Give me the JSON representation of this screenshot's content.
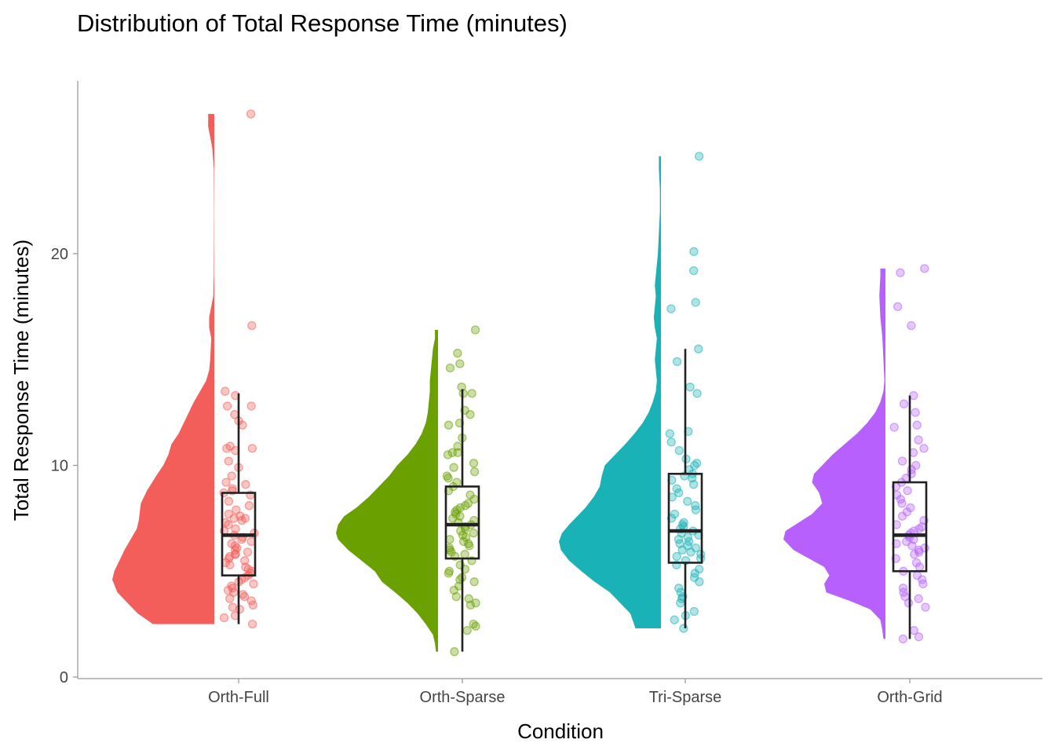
{
  "chart_data": {
    "type": "raincloud",
    "title": "Distribution of Total Response Time (minutes)",
    "xlabel": "Condition",
    "ylabel": "Total Response Time (minutes)",
    "ylim": [
      0,
      27.5
    ],
    "yticks": [
      0,
      10,
      20
    ],
    "grid": false,
    "legend": "none",
    "categories": [
      "Orth-Full",
      "Orth-Sparse",
      "Tri-Sparse",
      "Orth-Grid"
    ],
    "series": [
      {
        "category": "Orth-Full",
        "color": "#F35E5A",
        "min": 2.5,
        "q1": 4.8,
        "median": 6.7,
        "q3": 8.7,
        "max": 13.4,
        "range": [
          2.5,
          26.6
        ],
        "density": [
          [
            2.5,
            0.6
          ],
          [
            3.0,
            0.75
          ],
          [
            3.5,
            0.85
          ],
          [
            4.0,
            0.95
          ],
          [
            4.6,
            1.0
          ],
          [
            5.0,
            0.98
          ],
          [
            5.5,
            0.93
          ],
          [
            6.0,
            0.88
          ],
          [
            6.5,
            0.82
          ],
          [
            7.0,
            0.76
          ],
          [
            7.4,
            0.74
          ],
          [
            7.8,
            0.73
          ],
          [
            8.2,
            0.72
          ],
          [
            8.8,
            0.66
          ],
          [
            9.5,
            0.57
          ],
          [
            10.0,
            0.5
          ],
          [
            10.5,
            0.45
          ],
          [
            11.0,
            0.42
          ],
          [
            11.5,
            0.35
          ],
          [
            12.0,
            0.3
          ],
          [
            12.5,
            0.25
          ],
          [
            13.0,
            0.2
          ],
          [
            13.5,
            0.14
          ],
          [
            14.0,
            0.08
          ],
          [
            14.5,
            0.05
          ],
          [
            15.0,
            0.04
          ],
          [
            16.0,
            0.03
          ],
          [
            16.5,
            0.05
          ],
          [
            17.0,
            0.05
          ],
          [
            17.5,
            0.03
          ],
          [
            18.0,
            0.01
          ],
          [
            19.0,
            0.005
          ],
          [
            22.0,
            0.002
          ],
          [
            24.0,
            0.005
          ],
          [
            25.0,
            0.02
          ],
          [
            26.0,
            0.06
          ],
          [
            26.6,
            0.06
          ]
        ],
        "points": [
          26.6,
          16.6,
          13.5,
          13.3,
          12.8,
          12.8,
          12.4,
          12.1,
          11.9,
          10.9,
          10.8,
          10.8,
          10.7,
          10.2,
          9.9,
          9.5,
          9.2,
          9.1,
          8.9,
          8.8,
          8.7,
          8.6,
          8.3,
          8.1,
          7.9,
          7.7,
          7.6,
          7.5,
          7.5,
          7.4,
          7.3,
          7.2,
          7.0,
          6.9,
          6.8,
          6.7,
          6.6,
          6.5,
          6.4,
          6.3,
          6.2,
          6.1,
          6.0,
          5.9,
          5.8,
          5.8,
          5.7,
          5.6,
          5.5,
          5.4,
          5.3,
          5.2,
          5.1,
          5.0,
          4.9,
          4.8,
          4.7,
          4.6,
          4.5,
          4.4,
          4.3,
          4.2,
          4.1,
          4.0,
          3.9,
          3.8,
          3.7,
          3.6,
          3.4,
          3.3,
          3.2,
          2.9,
          2.8,
          2.5
        ]
      },
      {
        "category": "Orth-Sparse",
        "color": "#6AA100",
        "min": 1.2,
        "q1": 5.6,
        "median": 7.2,
        "q3": 9.0,
        "max": 13.6,
        "range": [
          1.2,
          16.4
        ],
        "density": [
          [
            1.2,
            0.02
          ],
          [
            1.6,
            0.03
          ],
          [
            2.0,
            0.05
          ],
          [
            2.5,
            0.12
          ],
          [
            3.0,
            0.2
          ],
          [
            3.5,
            0.3
          ],
          [
            4.0,
            0.42
          ],
          [
            4.5,
            0.55
          ],
          [
            5.0,
            0.62
          ],
          [
            5.5,
            0.75
          ],
          [
            6.0,
            0.88
          ],
          [
            6.5,
            0.98
          ],
          [
            6.8,
            1.0
          ],
          [
            7.2,
            0.98
          ],
          [
            7.6,
            0.92
          ],
          [
            8.0,
            0.8
          ],
          [
            8.5,
            0.68
          ],
          [
            9.0,
            0.58
          ],
          [
            9.5,
            0.48
          ],
          [
            10.0,
            0.4
          ],
          [
            10.5,
            0.3
          ],
          [
            11.0,
            0.22
          ],
          [
            11.5,
            0.16
          ],
          [
            12.0,
            0.12
          ],
          [
            12.5,
            0.1
          ],
          [
            13.0,
            0.09
          ],
          [
            13.5,
            0.08
          ],
          [
            14.0,
            0.08
          ],
          [
            14.5,
            0.07
          ],
          [
            15.0,
            0.06
          ],
          [
            15.5,
            0.05
          ],
          [
            16.0,
            0.03
          ],
          [
            16.4,
            0.03
          ]
        ],
        "points": [
          16.4,
          15.3,
          14.8,
          14.6,
          13.7,
          13.4,
          13.4,
          12.6,
          12.4,
          12.0,
          11.9,
          11.3,
          10.9,
          10.6,
          10.6,
          10.5,
          10.1,
          9.9,
          9.7,
          9.5,
          9.4,
          9.2,
          9.0,
          8.8,
          8.6,
          8.4,
          8.2,
          8.1,
          8.0,
          7.9,
          7.8,
          7.7,
          7.6,
          7.5,
          7.4,
          7.3,
          7.2,
          7.1,
          7.0,
          6.9,
          6.8,
          6.7,
          6.6,
          6.5,
          6.4,
          6.3,
          6.2,
          6.1,
          6.0,
          5.9,
          5.8,
          5.7,
          5.5,
          5.3,
          5.1,
          5.0,
          4.9,
          4.7,
          4.6,
          4.5,
          4.3,
          4.1,
          3.8,
          3.7,
          3.5,
          3.4,
          2.5,
          2.4,
          2.2,
          1.2
        ]
      },
      {
        "category": "Tri-Sparse",
        "color": "#19B2B7",
        "min": 2.3,
        "q1": 5.4,
        "median": 6.9,
        "q3": 9.6,
        "max": 15.5,
        "range": [
          2.3,
          24.6
        ],
        "density": [
          [
            2.3,
            0.25
          ],
          [
            3.0,
            0.3
          ],
          [
            3.5,
            0.4
          ],
          [
            4.0,
            0.5
          ],
          [
            4.5,
            0.65
          ],
          [
            5.0,
            0.78
          ],
          [
            5.5,
            0.9
          ],
          [
            6.0,
            0.98
          ],
          [
            6.4,
            1.0
          ],
          [
            6.8,
            0.97
          ],
          [
            7.2,
            0.9
          ],
          [
            7.6,
            0.82
          ],
          [
            8.0,
            0.74
          ],
          [
            8.5,
            0.66
          ],
          [
            9.0,
            0.6
          ],
          [
            9.5,
            0.58
          ],
          [
            10.0,
            0.55
          ],
          [
            10.5,
            0.45
          ],
          [
            11.0,
            0.35
          ],
          [
            11.5,
            0.26
          ],
          [
            12.0,
            0.18
          ],
          [
            12.5,
            0.12
          ],
          [
            13.0,
            0.08
          ],
          [
            13.5,
            0.05
          ],
          [
            14.0,
            0.04
          ],
          [
            14.5,
            0.05
          ],
          [
            15.0,
            0.06
          ],
          [
            15.5,
            0.05
          ],
          [
            16.0,
            0.04
          ],
          [
            16.5,
            0.06
          ],
          [
            17.0,
            0.07
          ],
          [
            17.5,
            0.06
          ],
          [
            18.0,
            0.05
          ],
          [
            18.5,
            0.06
          ],
          [
            19.0,
            0.05
          ],
          [
            19.5,
            0.04
          ],
          [
            20.0,
            0.03
          ],
          [
            21.0,
            0.02
          ],
          [
            22.0,
            0.01
          ],
          [
            23.0,
            0.01
          ],
          [
            24.0,
            0.02
          ],
          [
            24.6,
            0.02
          ]
        ],
        "points": [
          24.6,
          20.1,
          19.2,
          17.7,
          17.4,
          15.5,
          14.9,
          13.7,
          13.4,
          11.6,
          11.5,
          11.1,
          10.7,
          10.3,
          10.1,
          10.0,
          9.8,
          9.6,
          9.5,
          9.4,
          9.3,
          9.1,
          8.9,
          8.7,
          8.5,
          8.3,
          8.1,
          7.9,
          7.7,
          7.5,
          7.3,
          7.2,
          7.1,
          7.0,
          6.9,
          6.8,
          6.7,
          6.6,
          6.5,
          6.4,
          6.3,
          6.2,
          6.1,
          6.0,
          5.9,
          5.8,
          5.7,
          5.6,
          5.5,
          5.3,
          5.1,
          4.9,
          4.7,
          4.5,
          4.2,
          4.0,
          3.8,
          3.7,
          3.5,
          3.1,
          2.9,
          2.7,
          2.3
        ]
      },
      {
        "category": "Orth-Grid",
        "color": "#B760FE",
        "min": 1.8,
        "q1": 5.0,
        "median": 6.7,
        "q3": 9.2,
        "max": 13.3,
        "range": [
          1.8,
          19.3
        ],
        "density": [
          [
            1.8,
            0.02
          ],
          [
            2.2,
            0.03
          ],
          [
            2.7,
            0.05
          ],
          [
            3.2,
            0.15
          ],
          [
            3.6,
            0.35
          ],
          [
            4.0,
            0.58
          ],
          [
            4.4,
            0.6
          ],
          [
            4.8,
            0.55
          ],
          [
            5.2,
            0.6
          ],
          [
            5.6,
            0.75
          ],
          [
            6.0,
            0.9
          ],
          [
            6.5,
            1.0
          ],
          [
            6.9,
            0.98
          ],
          [
            7.3,
            0.85
          ],
          [
            7.7,
            0.72
          ],
          [
            8.2,
            0.62
          ],
          [
            8.7,
            0.65
          ],
          [
            9.2,
            0.72
          ],
          [
            9.6,
            0.7
          ],
          [
            10.0,
            0.62
          ],
          [
            10.5,
            0.52
          ],
          [
            11.0,
            0.4
          ],
          [
            11.5,
            0.28
          ],
          [
            12.0,
            0.18
          ],
          [
            12.5,
            0.1
          ],
          [
            13.0,
            0.05
          ],
          [
            13.5,
            0.02
          ],
          [
            14.0,
            0.01
          ],
          [
            15.0,
            0.02
          ],
          [
            16.0,
            0.03
          ],
          [
            17.0,
            0.05
          ],
          [
            18.0,
            0.06
          ],
          [
            19.0,
            0.05
          ],
          [
            19.3,
            0.05
          ]
        ],
        "points": [
          19.3,
          19.1,
          17.5,
          16.6,
          13.3,
          12.9,
          12.5,
          11.9,
          11.8,
          11.2,
          10.8,
          10.6,
          10.2,
          10.0,
          9.8,
          9.6,
          9.4,
          9.2,
          9.0,
          8.8,
          8.6,
          8.4,
          8.2,
          8.0,
          7.8,
          7.6,
          7.4,
          7.2,
          7.1,
          7.0,
          6.9,
          6.8,
          6.7,
          6.6,
          6.5,
          6.4,
          6.3,
          6.2,
          6.1,
          6.0,
          5.9,
          5.8,
          5.6,
          5.4,
          5.2,
          5.0,
          4.8,
          4.6,
          4.4,
          4.2,
          4.0,
          3.8,
          3.7,
          3.5,
          3.3,
          2.2,
          1.9,
          1.8
        ]
      }
    ]
  }
}
